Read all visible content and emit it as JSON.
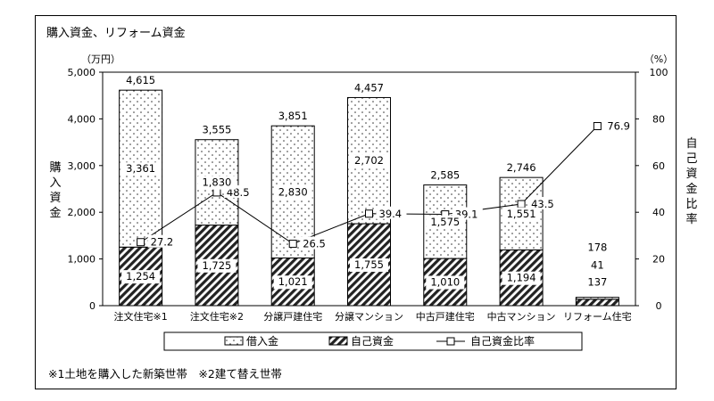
{
  "title": "購入資金、リフォーム資金",
  "note": "※1土地を購入した新築世帯　※2建て替え世帯",
  "chart_data": {
    "type": "bar",
    "stacked": true,
    "categories": [
      "注文住宅※1",
      "注文住宅※2",
      "分譲戸建住宅",
      "分譲マンション",
      "中古戸建住宅",
      "中古マンション",
      "リフォーム住宅"
    ],
    "series": [
      {
        "name": "借入金",
        "pattern": "dots",
        "values": [
          3361,
          1830,
          2830,
          2702,
          1575,
          1551,
          41
        ]
      },
      {
        "name": "自己資金",
        "pattern": "hatch",
        "values": [
          1254,
          1725,
          1021,
          1755,
          1010,
          1194,
          137
        ]
      }
    ],
    "totals": [
      4615,
      3555,
      3851,
      4457,
      2585,
      2746,
      178
    ],
    "labels": {
      "loan": [
        "3,361",
        "1,830",
        "2,830",
        "2,702",
        "1,575",
        "1,551",
        "41"
      ],
      "own": [
        "1,254",
        "1,725",
        "1,021",
        "1,755",
        "1,010",
        "1,194",
        "137"
      ],
      "totals": [
        "4,615",
        "3,555",
        "3,851",
        "4,457",
        "2,585",
        "2,746",
        "178"
      ],
      "ratio": [
        "27.2",
        "48.5",
        "26.5",
        "39.4",
        "39.1",
        "43.5",
        "76.9"
      ]
    },
    "line_series": {
      "name": "自己資金比率",
      "axis": "right",
      "values": [
        27.2,
        48.5,
        26.5,
        39.4,
        39.1,
        43.5,
        76.9
      ]
    },
    "y_left": {
      "label": "購入資金",
      "unit": "（万円）",
      "range": [
        0,
        5000
      ],
      "ticks": [
        "0",
        "1,000",
        "2,000",
        "3,000",
        "4,000",
        "5,000"
      ]
    },
    "y_right": {
      "label": "自己資金比率",
      "unit": "（%）",
      "range": [
        0,
        100
      ],
      "ticks": [
        "0",
        "20",
        "40",
        "60",
        "80",
        "100"
      ]
    },
    "legend_position": "bottom"
  }
}
